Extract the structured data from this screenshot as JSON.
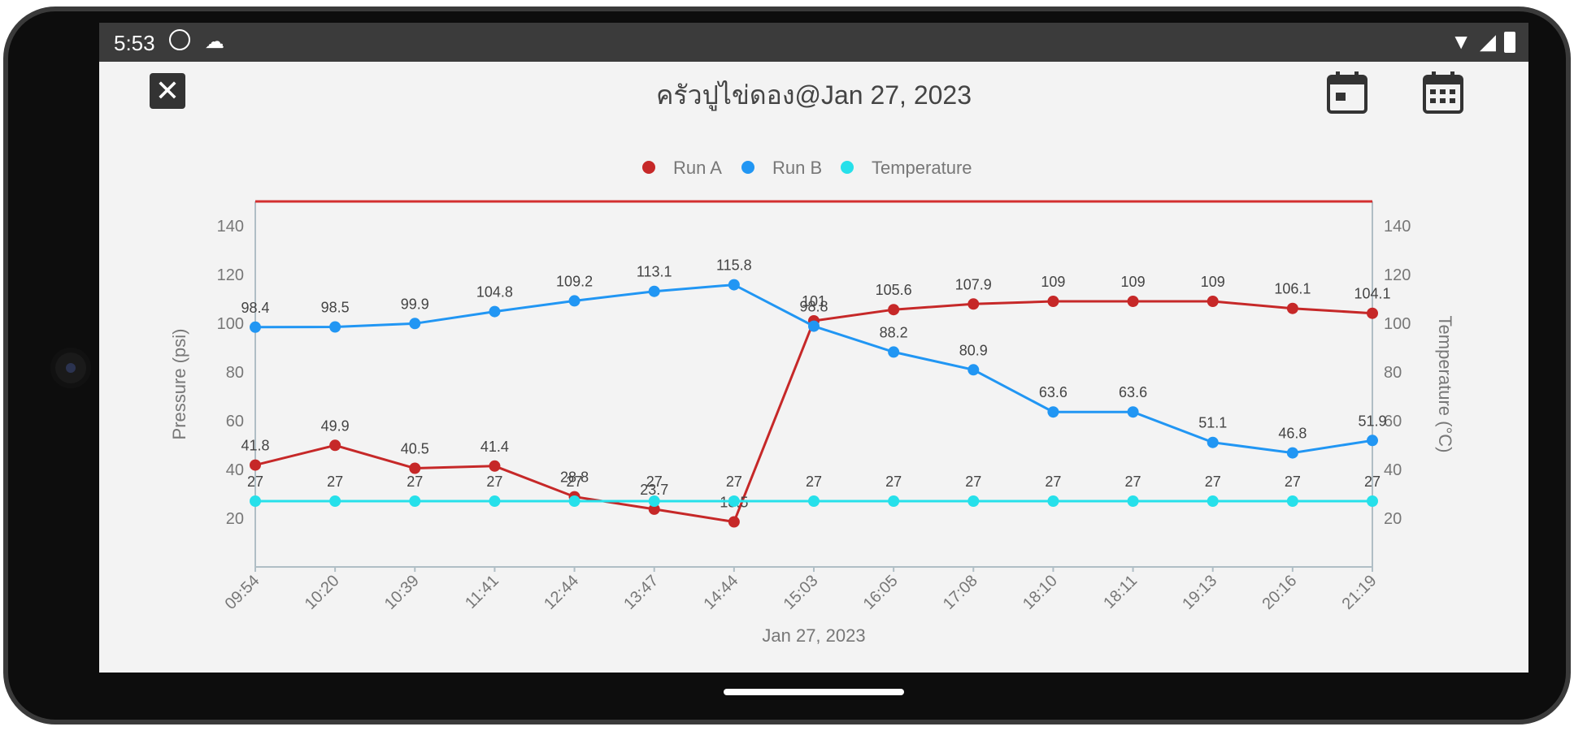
{
  "status_bar": {
    "time": "5:53"
  },
  "app_bar": {
    "title": "ครัวปูไข่ดอง@Jan 27, 2023",
    "close_icon": "close-icon",
    "calendar_day_icon": "calendar-day-icon",
    "calendar_range_icon": "calendar-range-icon"
  },
  "chart_data": {
    "type": "line",
    "xlabel": "Jan 27, 2023",
    "ylabel_left": "Pressure (psi)",
    "ylabel_right": "Temperature (°C)",
    "ylim": [
      0,
      150
    ],
    "y_ticks": [
      20,
      40,
      60,
      80,
      100,
      120,
      140
    ],
    "categories": [
      "09:54",
      "10:20",
      "10:39",
      "11:41",
      "12:44",
      "13:47",
      "14:44",
      "15:03",
      "16:05",
      "17:08",
      "18:10",
      "18:11",
      "19:13",
      "20:16",
      "21:19"
    ],
    "legend_position": "top-center",
    "threshold": {
      "value": 150,
      "color": "#d32f2f"
    },
    "series": [
      {
        "name": "Run A",
        "color": "#c62828",
        "labels": [
          "41.8",
          "49.9",
          "40.5",
          "41.4",
          "28.8",
          "23.7",
          "18.5",
          "101",
          "105.6",
          "107.9",
          "109",
          "109",
          "109",
          "106.1",
          "104.1"
        ],
        "values": [
          41.8,
          49.9,
          40.5,
          41.4,
          28.8,
          23.7,
          18.5,
          101,
          105.6,
          107.9,
          109,
          109,
          109,
          106.1,
          104.1
        ]
      },
      {
        "name": "Run B",
        "color": "#2196f3",
        "labels": [
          "98.4",
          "98.5",
          "99.9",
          "104.8",
          "109.2",
          "113.1",
          "115.8",
          "98.8",
          "88.2",
          "80.9",
          "63.6",
          "63.6",
          "51.1",
          "46.8",
          "51.9"
        ],
        "values": [
          98.4,
          98.5,
          99.9,
          104.8,
          109.2,
          113.1,
          115.8,
          98.8,
          88.2,
          80.9,
          63.6,
          63.6,
          51.1,
          46.8,
          51.9
        ]
      },
      {
        "name": "Temperature",
        "color": "#26e0ea",
        "labels": [
          "27",
          "27",
          "27",
          "27",
          "27",
          "27",
          "27",
          "27",
          "27",
          "27",
          "27",
          "27",
          "27",
          "27",
          "27"
        ],
        "values": [
          27,
          27,
          27,
          27,
          27,
          27,
          27,
          27,
          27,
          27,
          27,
          27,
          27,
          27,
          27
        ]
      }
    ]
  }
}
